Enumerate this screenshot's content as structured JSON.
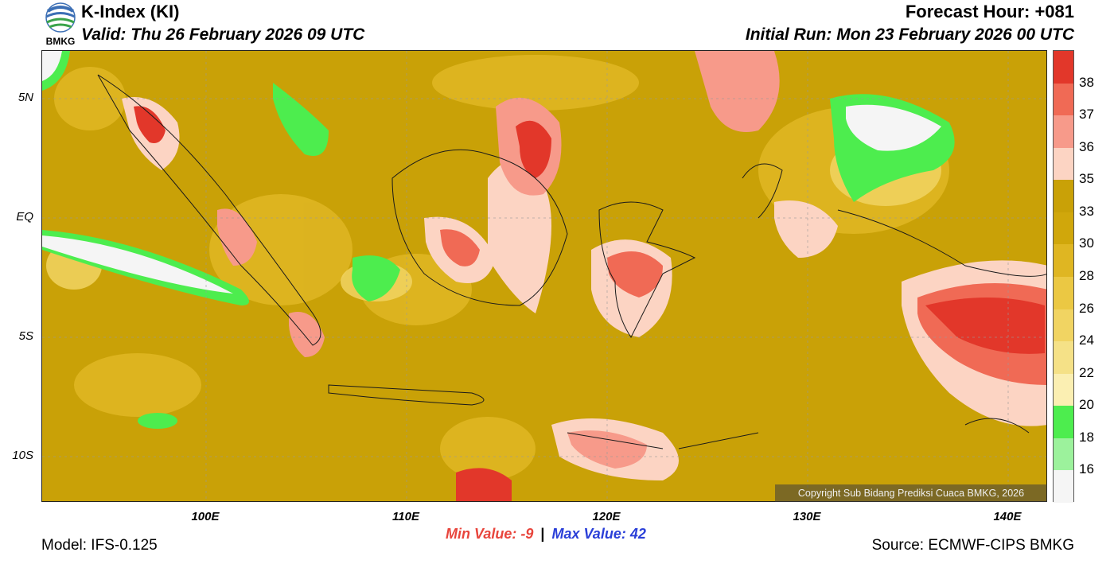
{
  "header": {
    "logo_text": "BMKG",
    "title": "K-Index (KI)",
    "valid": "Valid: Thu 26 February 2026 09 UTC",
    "forecast_hour": "Forecast Hour: +081",
    "initial_run": "Initial Run: Mon 23 February 2026 00 UTC"
  },
  "map": {
    "lat_labels": [
      "5N",
      "EQ",
      "5S",
      "10S"
    ],
    "lon_labels": [
      "100E",
      "110E",
      "120E",
      "130E",
      "140E"
    ],
    "copyright": "Copyright Sub Bidang Prediksi Cuaca BMKG, 2026"
  },
  "colorbar": {
    "labels": [
      "38",
      "37",
      "36",
      "35",
      "33",
      "30",
      "28",
      "26",
      "24",
      "22",
      "20",
      "18",
      "16"
    ],
    "colors": [
      "#e2372a",
      "#f06a55",
      "#f79a8a",
      "#fcd4c3",
      "#c9a107",
      "#d0a70b",
      "#dfb622",
      "#ebc843",
      "#f1d462",
      "#f5e187",
      "#fbefb2",
      "#4ded4e",
      "#9cf29c",
      "#f5f5f5"
    ]
  },
  "stats": {
    "min_label": "Min Value:",
    "min_value": "-9",
    "separator": "|",
    "max_label": "Max Value:",
    "max_value": "42"
  },
  "footer": {
    "model": "Model: IFS-0.125",
    "source": "Source: ECMWF-CIPS BMKG"
  }
}
